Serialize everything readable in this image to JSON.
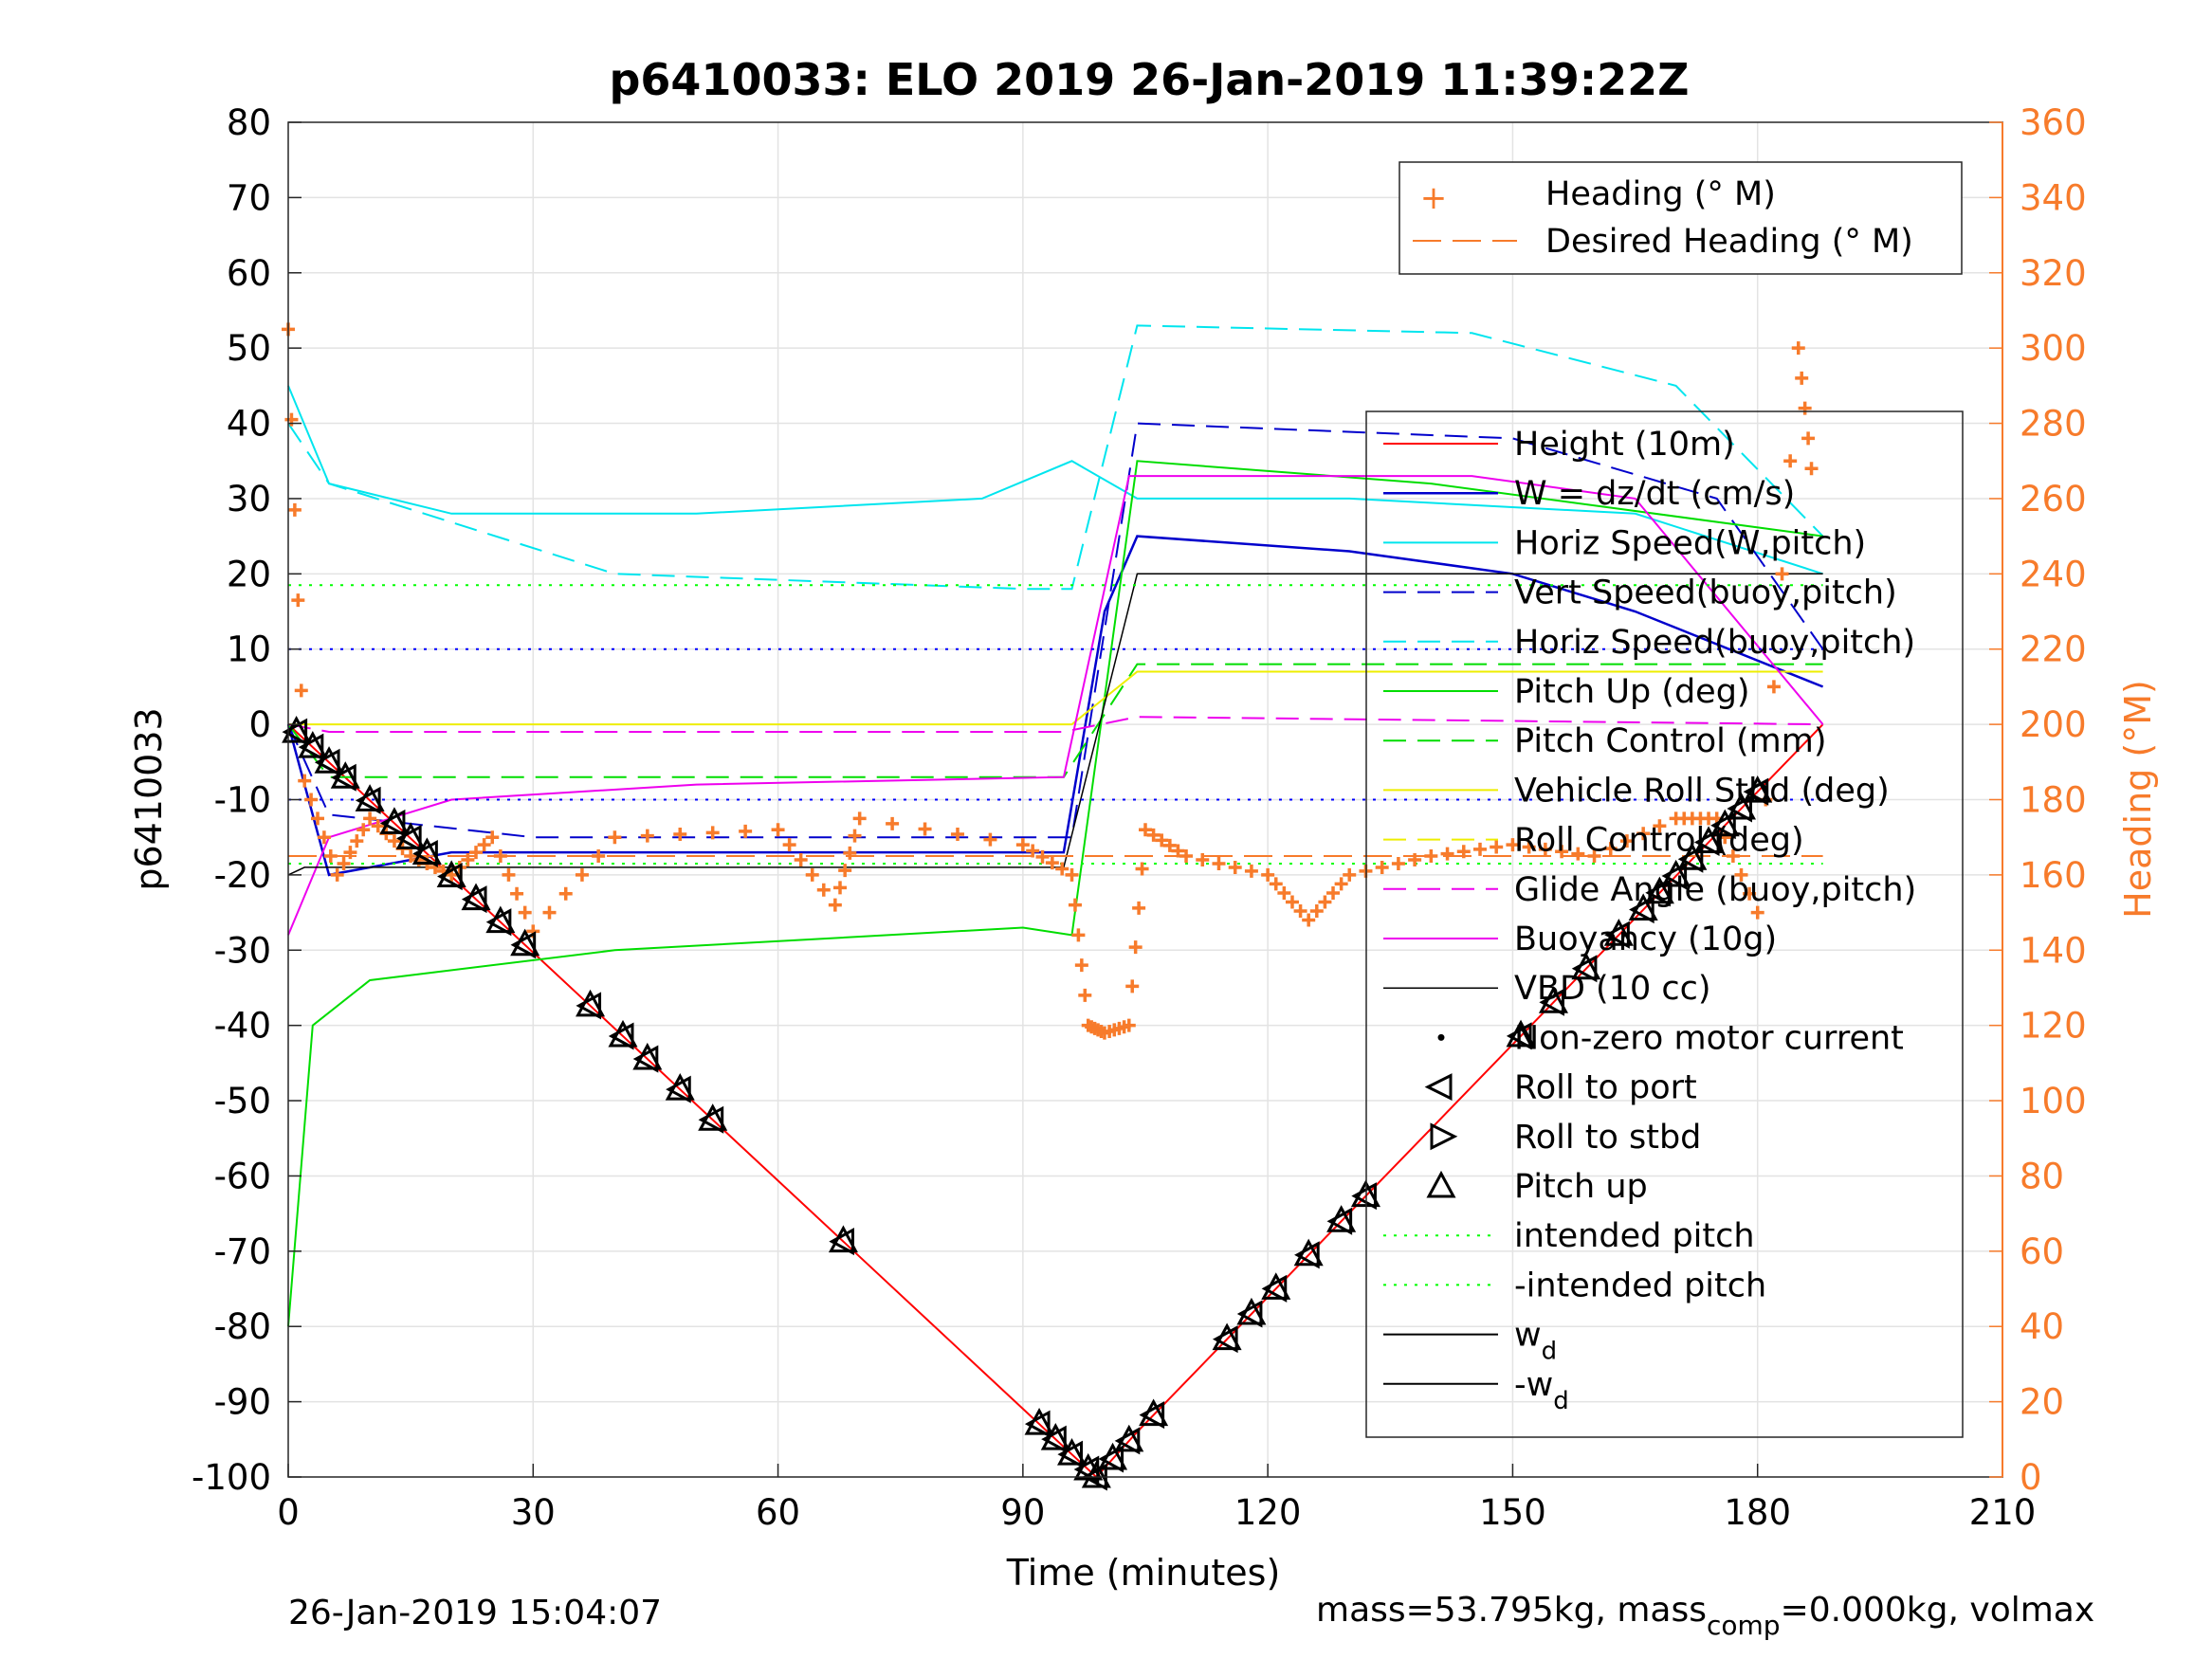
{
  "chart_data": {
    "type": "line",
    "title": "p6410033: ELO 2019 26-Jan-2019 11:39:22Z",
    "xlabel": "Time (minutes)",
    "ylabel": "p6410033",
    "ylabel_right": "Heading (°M)",
    "xlim": [
      0,
      210
    ],
    "ylim": [
      -100,
      80
    ],
    "ylim_right": [
      0,
      360
    ],
    "xticks": [
      "0",
      "30",
      "60",
      "90",
      "120",
      "150",
      "180",
      "210"
    ],
    "yticks": [
      "80",
      "70",
      "60",
      "50",
      "40",
      "30",
      "20",
      "10",
      "0",
      "-10",
      "-20",
      "-30",
      "-40",
      "-50",
      "-60",
      "-70",
      "-80",
      "-90",
      "-100"
    ],
    "yticks_right": [
      "360",
      "340",
      "320",
      "300",
      "280",
      "260",
      "240",
      "220",
      "200",
      "180",
      "160",
      "140",
      "120",
      "100",
      "80",
      "60",
      "40",
      "20",
      "0"
    ],
    "grid": true,
    "colors": {
      "heading": "#f77b2b",
      "height": "#ff0000",
      "w": "#0000cc",
      "horiz_speed": "#00e5ee",
      "pitch": "#00dd00",
      "roll": "#eeee00",
      "glide": "#ee00ee",
      "vbd": "#000000",
      "wd": "#0000ff"
    },
    "legend_top": {
      "placement": "top-right",
      "entries": [
        "Heading (° M)",
        "Desired Heading (° M)"
      ]
    },
    "legend_main": {
      "placement": "right",
      "entries": [
        "Height (10m)",
        "W = dz/dt (cm/s)",
        "Horiz Speed(W,pitch)",
        "Vert Speed(buoy,pitch)",
        "Horiz Speed(buoy,pitch)",
        "Pitch Up (deg)",
        "Pitch Control (mm)",
        "Vehicle Roll Stbd (deg)",
        "Roll Control (deg)",
        "Glide Angle (buoy,pitch)",
        "Buoyancy (10g)",
        "VBD (10 cc)",
        "Non-zero motor current",
        "Roll to port",
        "Roll to stbd",
        "Pitch up",
        "intended pitch",
        "-intended pitch",
        "w",
        "-w"
      ],
      "subscripts": [
        "d",
        "d"
      ]
    },
    "series": [
      {
        "name": "Height (10m)",
        "x": [
          0,
          96,
          99,
          104,
          188
        ],
        "y": [
          0,
          -97,
          -100,
          -94,
          0
        ]
      },
      {
        "name": "W = dz/dt (cm/s)",
        "x": [
          0,
          5,
          20,
          60,
          95,
          100,
          104,
          130,
          150,
          165,
          188
        ],
        "y": [
          0,
          -20,
          -17,
          -17,
          -17,
          15,
          25,
          23,
          20,
          15,
          5
        ]
      },
      {
        "name": "Horiz Speed(W,pitch)",
        "x": [
          0,
          5,
          20,
          50,
          85,
          96,
          104,
          130,
          165,
          188
        ],
        "y": [
          45,
          32,
          28,
          28,
          30,
          35,
          30,
          30,
          28,
          20
        ]
      },
      {
        "name": "Vert Speed(buoy,pitch)",
        "x": [
          0,
          5,
          30,
          90,
          96,
          104,
          150,
          175,
          188
        ],
        "y": [
          0,
          -12,
          -15,
          -15,
          -15,
          40,
          38,
          30,
          10
        ]
      },
      {
        "name": "Horiz Speed(buoy,pitch)",
        "x": [
          0,
          5,
          40,
          90,
          96,
          104,
          145,
          170,
          188
        ],
        "y": [
          40,
          32,
          20,
          18,
          18,
          53,
          52,
          45,
          25
        ]
      },
      {
        "name": "Pitch Up (deg)",
        "x": [
          0,
          3,
          10,
          40,
          90,
          96,
          104,
          140,
          188
        ],
        "y": [
          -80,
          -40,
          -34,
          -30,
          -27,
          -28,
          35,
          32,
          25
        ]
      },
      {
        "name": "Pitch Control (mm)",
        "x": [
          0,
          5,
          30,
          95,
          104,
          188
        ],
        "y": [
          0,
          -7,
          -7,
          -7,
          8,
          8
        ]
      },
      {
        "name": "Vehicle Roll Stbd (deg)",
        "x": [
          0,
          5,
          90,
          96,
          104,
          188
        ],
        "y": [
          0,
          0,
          0,
          0,
          7,
          7
        ]
      },
      {
        "name": "Glide Angle (buoy,pitch)",
        "x": [
          0,
          5,
          95,
          104,
          188
        ],
        "y": [
          0,
          -1,
          -1,
          1,
          0
        ]
      },
      {
        "name": "Buoyancy (10g)",
        "x": [
          0,
          5,
          20,
          50,
          95,
          103,
          145,
          165,
          188
        ],
        "y": [
          -28,
          -15,
          -10,
          -8,
          -7,
          33,
          33,
          30,
          0
        ]
      },
      {
        "name": "VBD (10 cc)",
        "x": [
          0,
          2,
          95,
          104,
          188
        ],
        "y": [
          -20,
          -19,
          -19,
          20,
          20
        ]
      },
      {
        "name": "intended pitch",
        "x": [
          0,
          188
        ],
        "y": [
          18.5,
          18.5
        ]
      },
      {
        "name": "-intended pitch",
        "x": [
          0,
          188
        ],
        "y": [
          -18.5,
          -18.5
        ]
      },
      {
        "name": "w d",
        "x": [
          0,
          188
        ],
        "y": [
          10,
          10
        ]
      },
      {
        "name": "-w d",
        "x": [
          0,
          188
        ],
        "y": [
          -10,
          -10
        ]
      },
      {
        "name": "Heading (° M)",
        "axis": "right",
        "x": [
          0,
          2,
          6,
          10,
          15,
          20,
          25,
          30,
          40,
          60,
          67,
          70,
          90,
          96,
          98,
          100,
          103,
          105,
          110,
          120,
          125,
          130,
          140,
          150,
          160,
          170,
          175,
          180,
          185,
          187
        ],
        "y": [
          305,
          185,
          160,
          175,
          165,
          160,
          170,
          145,
          170,
          172,
          152,
          175,
          168,
          160,
          120,
          118,
          120,
          172,
          165,
          160,
          148,
          160,
          165,
          168,
          165,
          175,
          175,
          150,
          300,
          260
        ]
      },
      {
        "name": "Desired Heading (° M)",
        "axis": "right",
        "x": [
          0,
          188
        ],
        "y": [
          165,
          165
        ]
      }
    ],
    "markers": {
      "pitch_up_x": [
        1,
        3,
        5,
        7,
        10,
        13,
        15,
        17,
        20,
        23,
        26,
        29,
        37,
        41,
        44,
        48,
        52,
        68,
        92,
        94,
        96,
        98,
        99,
        101,
        103,
        106,
        115,
        118,
        121,
        125,
        129,
        132,
        151,
        155,
        159,
        163,
        166,
        168,
        170,
        172,
        174,
        176,
        178,
        180
      ]
    },
    "footer_left": "26-Jan-2019 15:04:07",
    "footer_right_a": "mass=53.795kg, mass",
    "footer_right_sub": "comp",
    "footer_right_b": "=0.000kg, volmax"
  }
}
